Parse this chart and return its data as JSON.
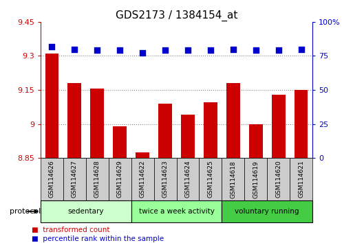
{
  "title": "GDS2173 / 1384154_at",
  "categories": [
    "GSM114626",
    "GSM114627",
    "GSM114628",
    "GSM114629",
    "GSM114622",
    "GSM114623",
    "GSM114624",
    "GSM114625",
    "GSM114618",
    "GSM114619",
    "GSM114620",
    "GSM114621"
  ],
  "bar_values": [
    9.31,
    9.18,
    9.155,
    8.99,
    8.875,
    9.09,
    9.04,
    9.095,
    9.18,
    9.0,
    9.13,
    9.15
  ],
  "dot_values_pct": [
    82,
    80,
    79,
    79,
    77,
    79,
    79,
    79,
    80,
    79,
    79,
    80
  ],
  "ylim_left": [
    8.85,
    9.45
  ],
  "ylim_right": [
    0,
    100
  ],
  "yticks_left": [
    8.85,
    9.0,
    9.15,
    9.3,
    9.45
  ],
  "yticks_right": [
    0,
    25,
    50,
    75,
    100
  ],
  "ytick_labels_left": [
    "8.85",
    "9",
    "9.15",
    "9.3",
    "9.45"
  ],
  "ytick_labels_right": [
    "0",
    "25",
    "50",
    "75",
    "100%"
  ],
  "bar_color": "#cc0000",
  "dot_color": "#0000cc",
  "groups": [
    {
      "label": "sedentary",
      "indices": [
        0,
        1,
        2,
        3
      ],
      "color": "#ccffcc"
    },
    {
      "label": "twice a week activity",
      "indices": [
        4,
        5,
        6,
        7
      ],
      "color": "#99ff99"
    },
    {
      "label": "voluntary running",
      "indices": [
        8,
        9,
        10,
        11
      ],
      "color": "#44cc44"
    }
  ],
  "protocol_label": "protocol",
  "legend_items": [
    {
      "label": "transformed count",
      "color": "#cc0000"
    },
    {
      "label": "percentile rank within the sample",
      "color": "#0000cc"
    }
  ],
  "grid_color": "#888888",
  "bar_bottom": 8.85,
  "title_color": "#000000",
  "left_axis_color": "#cc0000",
  "right_axis_color": "#0000cc",
  "xtick_bg_color": "#cccccc",
  "title_fontsize": 11
}
